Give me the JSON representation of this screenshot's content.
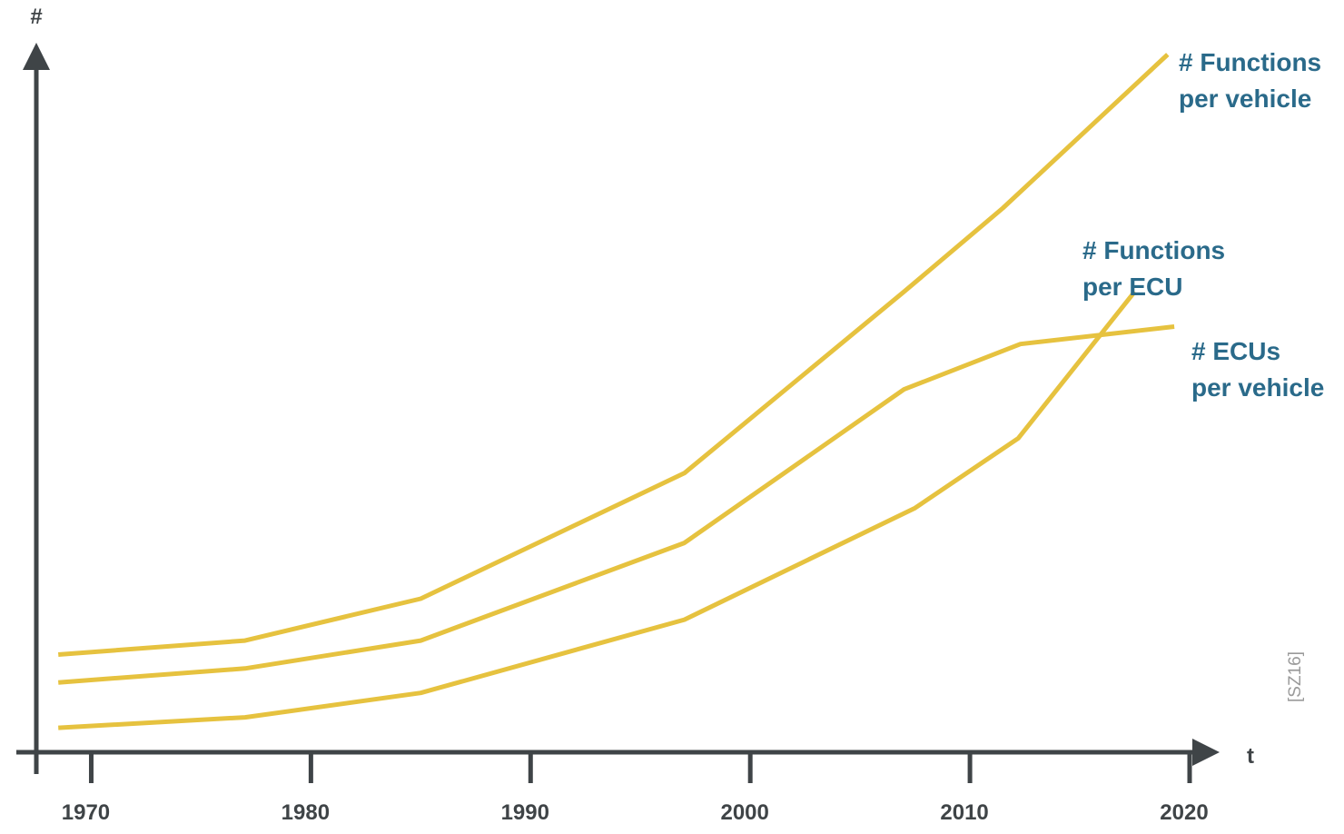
{
  "chart_data": {
    "type": "line",
    "ylabel": "#",
    "xlabel": "t",
    "xlim": [
      1967.5,
      2020
    ],
    "ylim": [
      0,
      100
    ],
    "x_ticks": [
      1970,
      1980,
      1990,
      2000,
      2010,
      2020
    ],
    "grid": false,
    "line_color": "#e6c23f",
    "label_color": "#2a6a8a",
    "axis_color": "#3f4447",
    "series": [
      {
        "name": "# Functions per vehicle",
        "label_lines": [
          "# Functions",
          "per vehicle"
        ],
        "x": [
          1968.5,
          1977,
          1985,
          1997,
          2007,
          2011.5,
          2019
        ],
        "y": [
          14,
          16,
          22,
          40,
          66,
          78,
          100
        ]
      },
      {
        "name": "# ECUs per vehicle",
        "label_lines": [
          "# ECUs",
          "per vehicle"
        ],
        "x": [
          1968.5,
          1977,
          1985,
          1997,
          2007,
          2012.3,
          2019.3
        ],
        "y": [
          10,
          12,
          16,
          30,
          52,
          58.5,
          61
        ]
      },
      {
        "name": "# Functions per ECU",
        "label_lines": [
          "# Functions",
          "per ECU"
        ],
        "x": [
          1968.5,
          1977,
          1985,
          1997,
          2007.5,
          2012.2,
          2017.5
        ],
        "y": [
          3.5,
          5,
          8.5,
          19,
          35,
          45,
          66
        ]
      }
    ]
  },
  "source_note": "[SZ16]"
}
